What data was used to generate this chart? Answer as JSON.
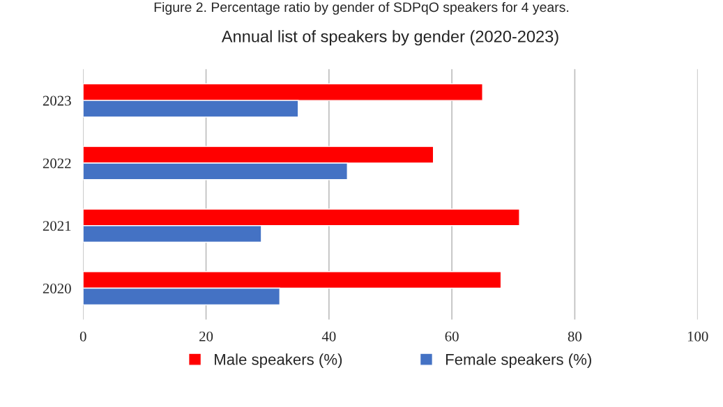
{
  "chart_data": {
    "type": "bar",
    "orientation": "horizontal",
    "title": "Annual list of speakers by gender (2020-2023)",
    "annotations": [
      "Figure 2. Percentage ratio by gender of SDPqO speakers for 4 years."
    ],
    "categories": [
      "2023",
      "2022",
      "2021",
      "2020"
    ],
    "series": [
      {
        "name": "Male speakers (%)",
        "color": "#ff0000",
        "values": [
          65,
          57,
          71,
          68
        ]
      },
      {
        "name": "Female speakers (%)",
        "color": "#4472c4",
        "values": [
          35,
          43,
          29,
          32
        ]
      }
    ],
    "xlim": [
      0,
      100
    ],
    "xticks": [
      0,
      20,
      40,
      60,
      80,
      100
    ],
    "grid": "x",
    "legend": "bottom"
  }
}
